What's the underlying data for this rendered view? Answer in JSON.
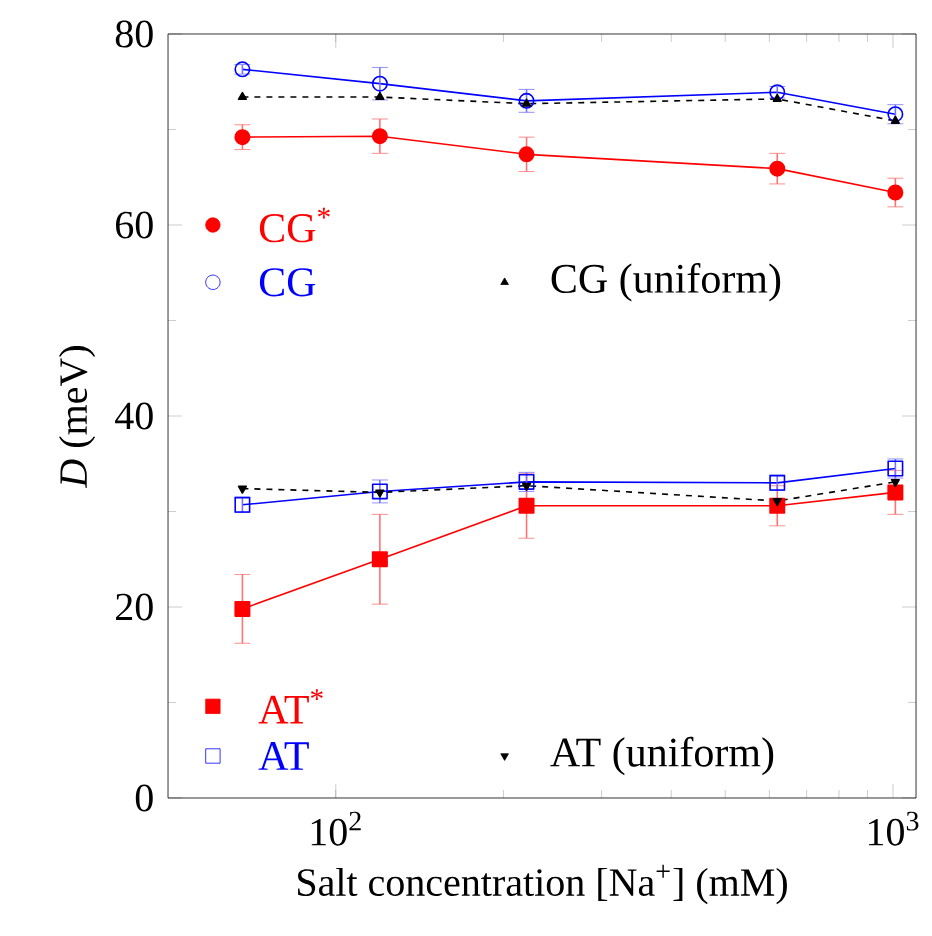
{
  "chart_data": {
    "type": "line",
    "xlabel": "Salt concentration [Na$^{+}$] (mM)",
    "ylabel": "*D* (meV)",
    "log": "x",
    "xlim": [
      50,
      1100
    ],
    "xticks": [
      {
        "value": 100,
        "label": "10$^{2}$"
      },
      {
        "value": 1000,
        "label": "10$^{3}$"
      }
    ],
    "ylim": [
      0,
      80
    ],
    "yticks": [
      0,
      20,
      40,
      60,
      80
    ],
    "grid": false,
    "legend": "left",
    "x": [
      68,
      120,
      220,
      620,
      1010
    ],
    "series": [
      {
        "name": "CG$^{*}$",
        "color": "#ff0000",
        "marker": "circle",
        "line_style": "solid",
        "values": [
          69.2,
          69.3,
          67.4,
          65.9,
          63.4
        ],
        "errors": [
          1.3,
          1.8,
          1.8,
          1.6,
          1.5
        ]
      },
      {
        "name": "CG",
        "color": "#0000ff",
        "marker": "circle-open",
        "line_style": "solid",
        "values": [
          76.3,
          74.8,
          73.0,
          73.9,
          71.6
        ],
        "errors": [
          0.5,
          1.7,
          1.2,
          0.6,
          1.0
        ]
      },
      {
        "name": "CG (uniform)",
        "color": "#000000",
        "marker": "triangle",
        "line_style": "dashed",
        "values": [
          73.4,
          73.4,
          72.7,
          73.2,
          70.9
        ]
      },
      {
        "name": "AT$^{*}$",
        "color": "#ff0000",
        "marker": "square",
        "line_style": "solid",
        "values": [
          19.8,
          25.0,
          30.6,
          30.6,
          32.0
        ],
        "errors": [
          3.6,
          4.7,
          3.4,
          2.1,
          2.3
        ]
      },
      {
        "name": "AT",
        "color": "#0000ff",
        "marker": "square-open",
        "line_style": "solid",
        "values": [
          30.7,
          32.1,
          33.1,
          33.0,
          34.5
        ],
        "errors": [
          0.8,
          1.2,
          1.0,
          0.8,
          1.0
        ]
      },
      {
        "name": "AT (uniform)",
        "color": "#000000",
        "marker": "triangle-down",
        "line_style": "dashed",
        "values": [
          32.4,
          32.0,
          32.7,
          31.1,
          33.1
        ]
      }
    ]
  }
}
